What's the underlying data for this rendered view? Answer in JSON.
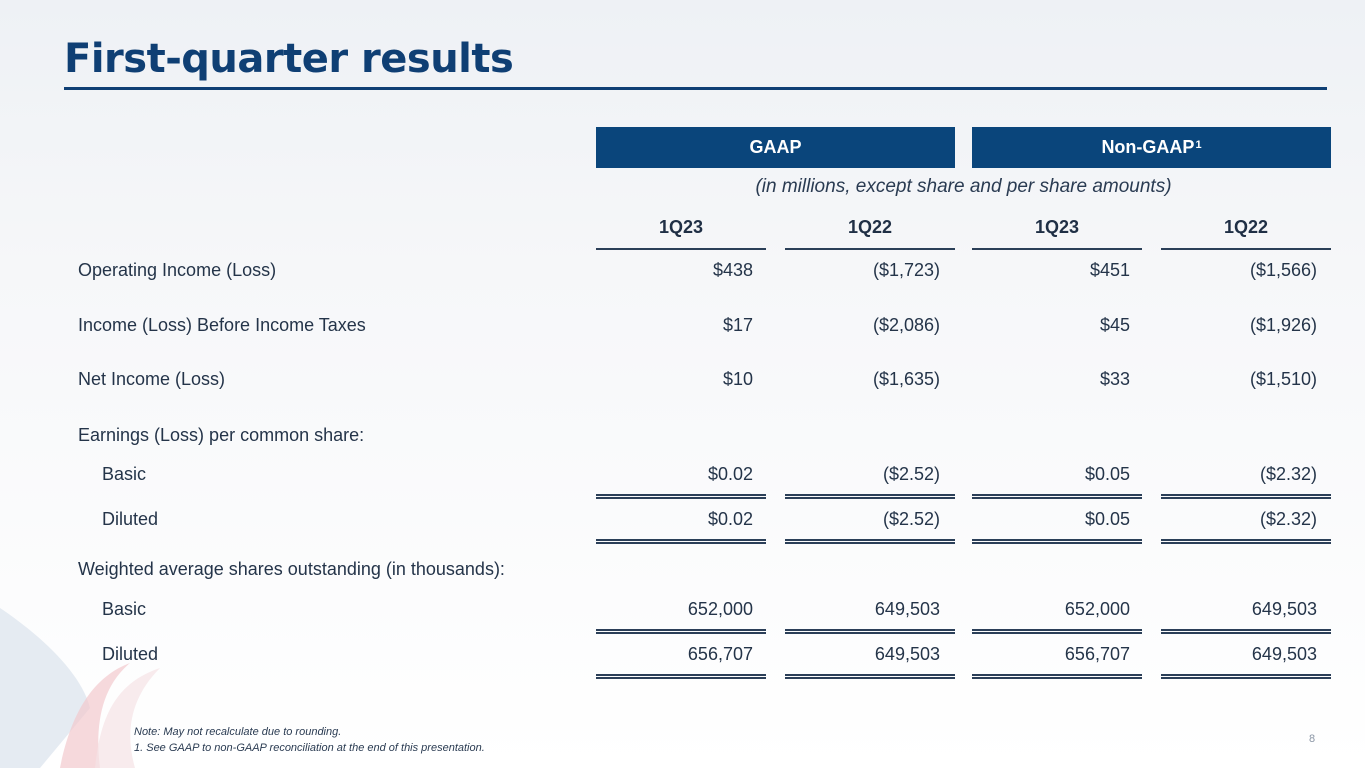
{
  "title": "First-quarter results",
  "group_headers": {
    "gaap": "GAAP",
    "non_gaap": "Non-GAAP",
    "non_gaap_sup": "1"
  },
  "subtitle": "(in millions, except share and per share amounts)",
  "columns": [
    "1Q23",
    "1Q22",
    "1Q23",
    "1Q22"
  ],
  "rows": [
    {
      "label": "Operating Income (Loss)",
      "values": [
        "$438",
        "($1,723)",
        "$451",
        "($1,566)"
      ]
    },
    {
      "label": "Income (Loss) Before Income Taxes",
      "values": [
        "$17",
        "($2,086)",
        "$45",
        "($1,926)"
      ]
    },
    {
      "label": "Net Income (Loss)",
      "values": [
        "$10",
        "($1,635)",
        "$33",
        "($1,510)"
      ]
    },
    {
      "label": "Earnings (Loss) per common share:"
    },
    {
      "label": "Basic",
      "values": [
        "$0.02",
        "($2.52)",
        "$0.05",
        "($2.32)"
      ]
    },
    {
      "label": "Diluted",
      "values": [
        "$0.02",
        "($2.52)",
        "$0.05",
        "($2.32)"
      ]
    },
    {
      "label": "Weighted average shares outstanding (in thousands):"
    },
    {
      "label": "Basic",
      "values": [
        "652,000",
        "649,503",
        "652,000",
        "649,503"
      ]
    },
    {
      "label": "Diluted",
      "values": [
        "656,707",
        "649,503",
        "656,707",
        "649,503"
      ]
    }
  ],
  "footnotes": {
    "note": "Note:  May not recalculate due to rounding.",
    "fn1": "1. See GAAP to non-GAAP reconciliation at the end of this presentation."
  },
  "page_number": "8",
  "colors": {
    "brand_blue": "#0a457b",
    "rule": "#0f3f74",
    "swoosh_red": "#e4212e",
    "swoosh_blue": "#2f86c8"
  }
}
